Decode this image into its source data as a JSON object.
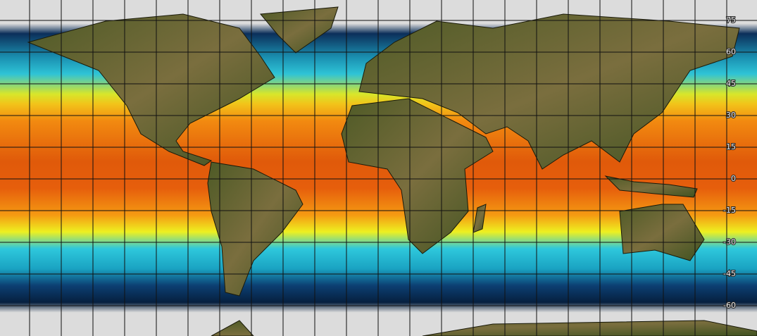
{
  "lat_labels": [
    "75",
    "60",
    "45",
    "30",
    "15",
    "0",
    "-15",
    "-30",
    "-45",
    "-60"
  ]
}
